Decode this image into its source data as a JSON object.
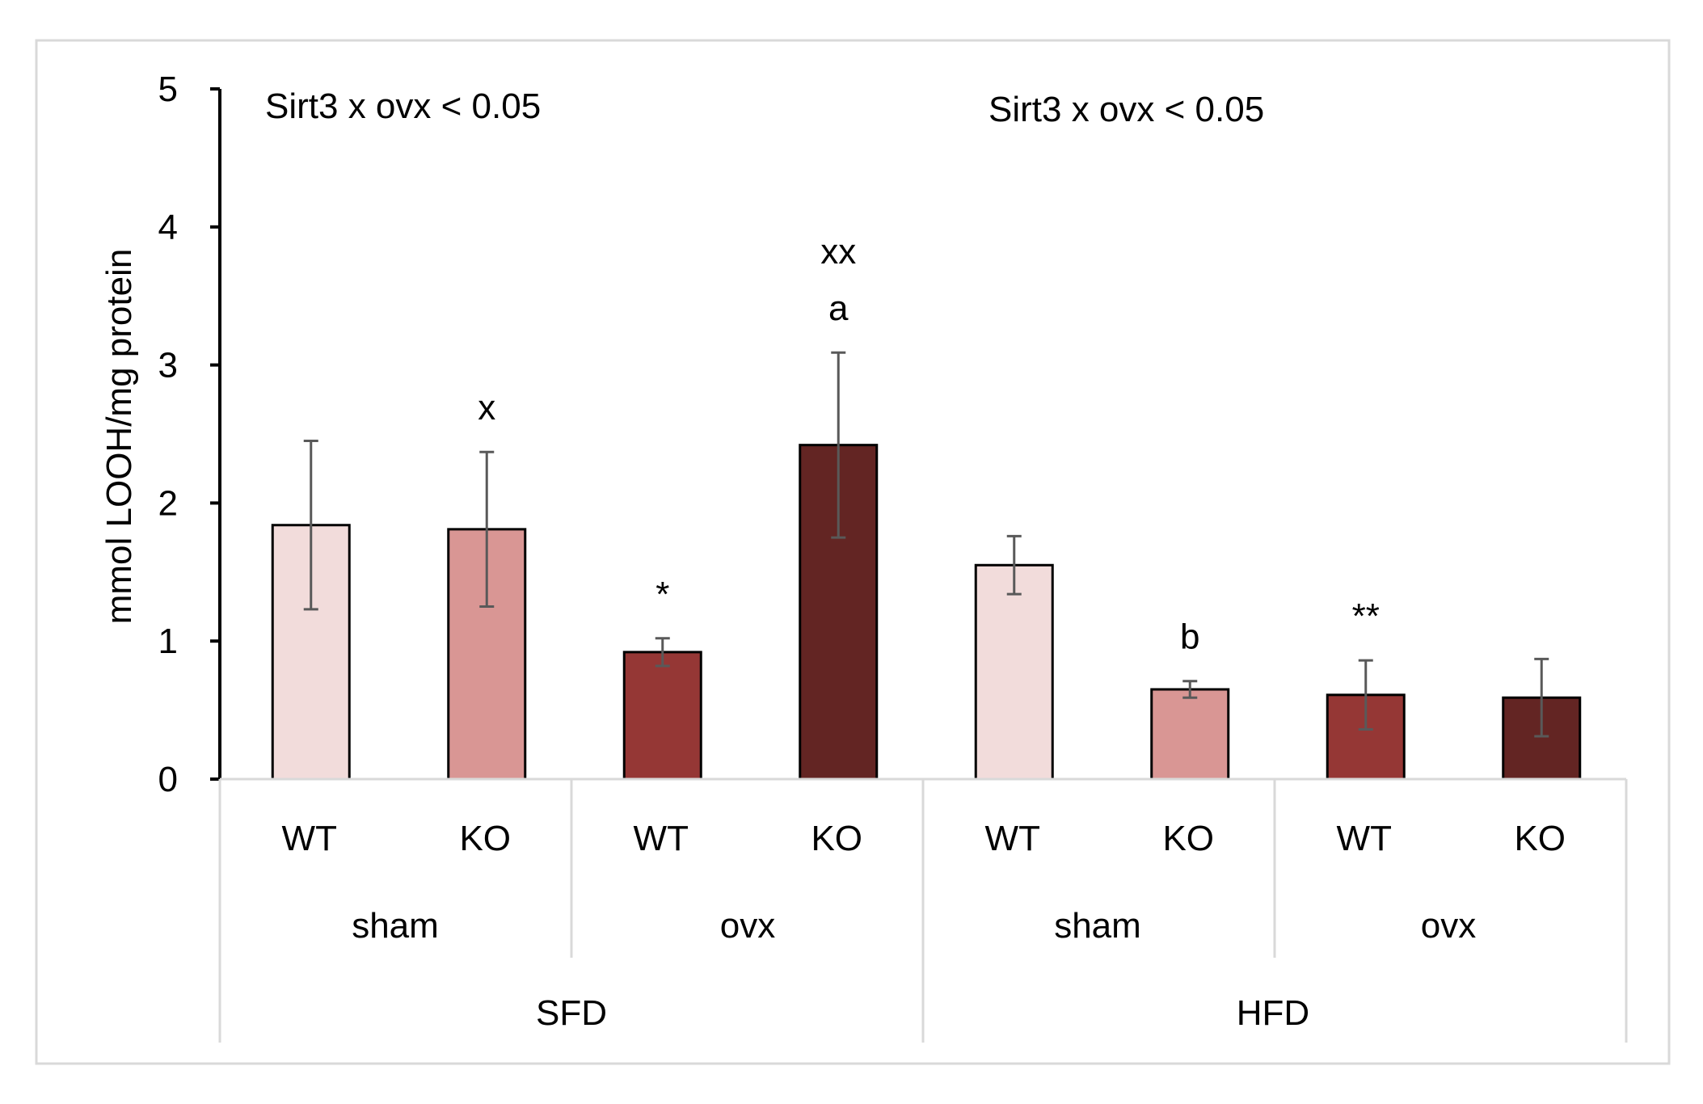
{
  "chart_data": {
    "type": "bar",
    "title": "",
    "xlabel": "",
    "ylabel": "mmol LOOH/mg protein",
    "ylim": [
      0,
      5
    ],
    "yticks": [
      "0",
      "1",
      "2",
      "3",
      "4",
      "5"
    ],
    "grid": false,
    "legend": "none",
    "categories": [
      "WT",
      "KO",
      "WT",
      "KO",
      "WT",
      "KO",
      "WT",
      "KO"
    ],
    "values": [
      1.84,
      1.81,
      0.92,
      2.42,
      1.55,
      0.65,
      0.61,
      0.59
    ],
    "errors": [
      0.61,
      0.56,
      0.1,
      0.67,
      0.21,
      0.06,
      0.25,
      0.28
    ],
    "bar_colors": [
      "#f2dcdb",
      "#d99694",
      "#953735",
      "#632523",
      "#f2dcdb",
      "#d99694",
      "#953735",
      "#632523"
    ],
    "annotations": [
      "",
      "x",
      "*",
      "a",
      "",
      "b",
      "**",
      ""
    ],
    "annotations_top": [
      "",
      "",
      "",
      "xx",
      "",
      "",
      "",
      ""
    ],
    "surgery_groups": [
      "sham",
      "ovx",
      "sham",
      "ovx"
    ],
    "diet_groups": [
      "SFD",
      "HFD"
    ],
    "stat_labels": [
      "Sirt3 x ovx < 0.05",
      "Sirt3 x ovx < 0.05"
    ]
  }
}
